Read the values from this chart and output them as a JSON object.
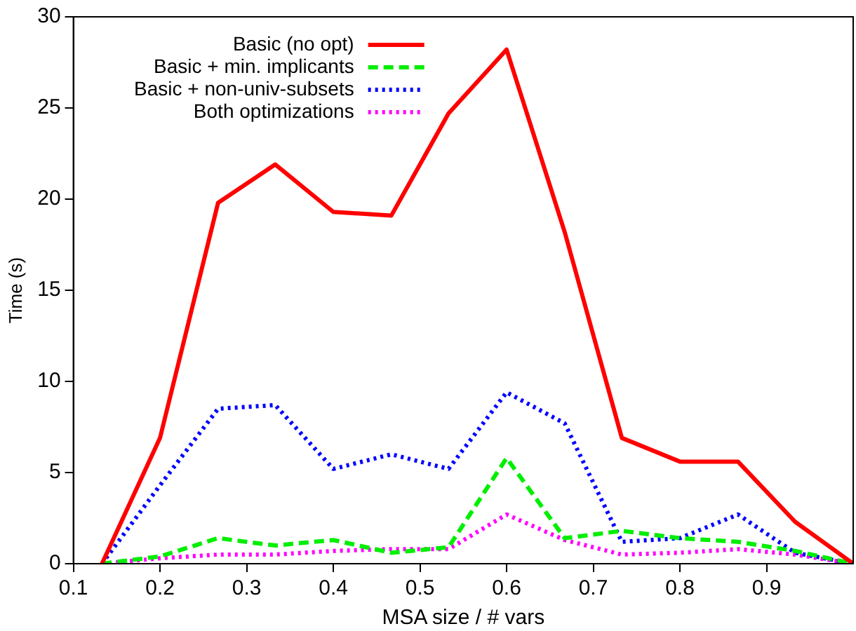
{
  "chart_data": {
    "type": "line",
    "xlabel": "MSA size / # vars",
    "ylabel": "Time (s)",
    "x": [
      0.133,
      0.2,
      0.267,
      0.333,
      0.4,
      0.467,
      0.533,
      0.6,
      0.667,
      0.733,
      0.8,
      0.867,
      0.933,
      1.0
    ],
    "xlim": [
      0.1,
      1.0
    ],
    "xticks": [
      0.1,
      0.2,
      0.3,
      0.4,
      0.5,
      0.6,
      0.7,
      0.8,
      0.9
    ],
    "ylim": [
      0,
      30
    ],
    "yticks": [
      0,
      5,
      10,
      15,
      20,
      25,
      30
    ],
    "grid": false,
    "legend": "top left",
    "marker": "none",
    "series": [
      {
        "name": "Basic (no opt)",
        "color": "#ff0000",
        "line_style": "solid",
        "values": [
          0,
          6.9,
          19.8,
          21.9,
          19.3,
          19.1,
          24.7,
          28.2,
          18.2,
          6.9,
          5.6,
          5.6,
          2.3,
          0
        ]
      },
      {
        "name": "Basic + min. implicants",
        "color": "#00ee00",
        "line_style": "dashed",
        "values": [
          0,
          0.4,
          1.4,
          1.0,
          1.3,
          0.6,
          0.9,
          5.8,
          1.4,
          1.8,
          1.4,
          1.2,
          0.7,
          0
        ]
      },
      {
        "name": "Basic + non-univ-subsets",
        "color": "#0000ff",
        "line_style": "dotted",
        "values": [
          0,
          4.3,
          8.5,
          8.7,
          5.2,
          6.0,
          5.2,
          9.4,
          7.7,
          1.2,
          1.4,
          2.7,
          0.6,
          0
        ]
      },
      {
        "name": "Both optimizations",
        "color": "#ff00ff",
        "line_style": "dotted",
        "values": [
          0,
          0.3,
          0.5,
          0.5,
          0.7,
          0.8,
          0.8,
          2.7,
          1.3,
          0.5,
          0.6,
          0.8,
          0.5,
          0
        ]
      }
    ]
  }
}
